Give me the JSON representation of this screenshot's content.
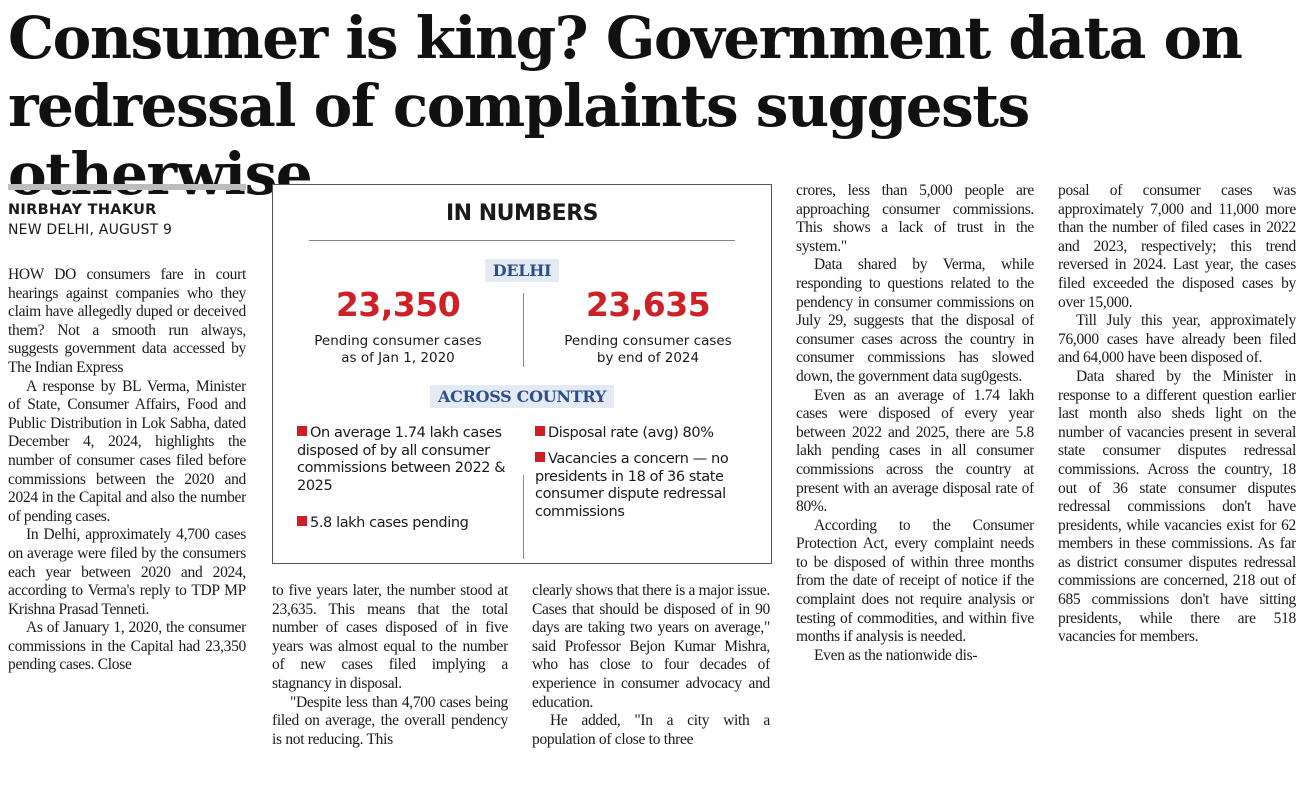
{
  "headline": "Consumer is king? Government data on redressal of complaints suggests otherwise",
  "byline": {
    "author": "NIRBHAY THAKUR",
    "dateline": "NEW DELHI, AUGUST 9"
  },
  "col1": [
    "HOW DO consumers fare in court hearings against companies who they claim have allegedly duped or deceived them? Not a smooth run always, suggests government data accessed by The Indian Express",
    "A response by BL Verma, Minister of State, Consumer Affairs, Food and Public Distribution in Lok Sabha, dated December 4, 2024, highlights the number of consumer cases filed before commissions between the 2020 and 2024 in the Capital and also the number of pending cases.",
    "In Delhi, approximately 4,700 cases on average were filed by the consumers each year between 2020 and 2024, according to Verma's reply to TDP MP Krishna Prasad Tenneti.",
    "As of January 1, 2020, the consumer commissions in the Capital had 23,350 pending cases. Close"
  ],
  "infobox": {
    "title": "IN NUMBERS",
    "delhi_label": "DELHI",
    "stat1_value": "23,350",
    "stat1_caption_l1": "Pending consumer cases",
    "stat1_caption_l2": "as of Jan 1, 2020",
    "stat2_value": "23,635",
    "stat2_caption_l1": "Pending consumer cases",
    "stat2_caption_l2": "by end of 2024",
    "country_label": "ACROSS COUNTRY",
    "bullet1": "On average 1.74 lakh cases disposed of by all consumer commissions between 2022 & 2025",
    "bullet2": "5.8 lakh cases pending",
    "bullet3": "Disposal rate (avg) 80%",
    "bullet4": "Vacancies a concern — no presidents in 18 of 36 state consumer dispute redressal commissions"
  },
  "col2": [
    "to five years later, the number stood at 23,635. This means that the total number of cases disposed of in five years was almost equal to the number of new cases filed implying a stagnancy in disposal.",
    "\"Despite less than 4,700 cases being filed on average, the overall pendency is not reducing. This"
  ],
  "col3": [
    "clearly shows that there is a major issue. Cases that should be disposed of in 90 days are taking two years on average,\" said Professor Bejon Kumar Mishra, who has close to four decades of experience in consumer advocacy and education.",
    "He added, \"In a city with a population of close to three"
  ],
  "col4": [
    "crores, less than 5,000 people are approaching consumer commissions. This shows a lack of trust in the system.\"",
    "Data shared by Verma, while responding to questions related to the pendency in consumer commissions on July 29, suggests that the disposal of consumer cases across the country in consumer commissions has slowed down, the government data sug0gests.",
    "Even as an average of 1.74 lakh cases were disposed of every year between 2022 and 2025, there are 5.8 lakh pending cases in all consumer commissions across the country at present with an average disposal rate of 80%.",
    "According to the Consumer Protection Act, every complaint needs to be disposed of within three months from the date of receipt of notice if the complaint does not require analysis or testing of commodities, and within five months if analysis is needed.",
    "Even as the nationwide dis-"
  ],
  "col5": [
    "posal of consumer cases was approximately 7,000 and 11,000 more than the number of filed cases in 2022 and 2023, respectively; this trend reversed in 2024. Last year, the cases filed exceeded the disposed cases by over 15,000.",
    "Till July this year, approximately 76,000 cases have already been filed and 64,000 have been disposed of.",
    "Data shared by the Minister in response to a different question earlier last month also sheds light on the number of vacancies present in several state consumer disputes redressal commissions. Across the country, 18 out of 36 state consumer disputes redressal commissions don't have presidents, while vacancies exist for 62 members in these commissions. As far as district consumer disputes redressal commissions are concerned, 218 out of 685 commissions don't have sitting presidents, while there are 518 vacancies for members."
  ],
  "colors": {
    "accent_red": "#cf2027",
    "label_blue": "#2c4f8c",
    "label_bg": "#e3eaf4"
  }
}
